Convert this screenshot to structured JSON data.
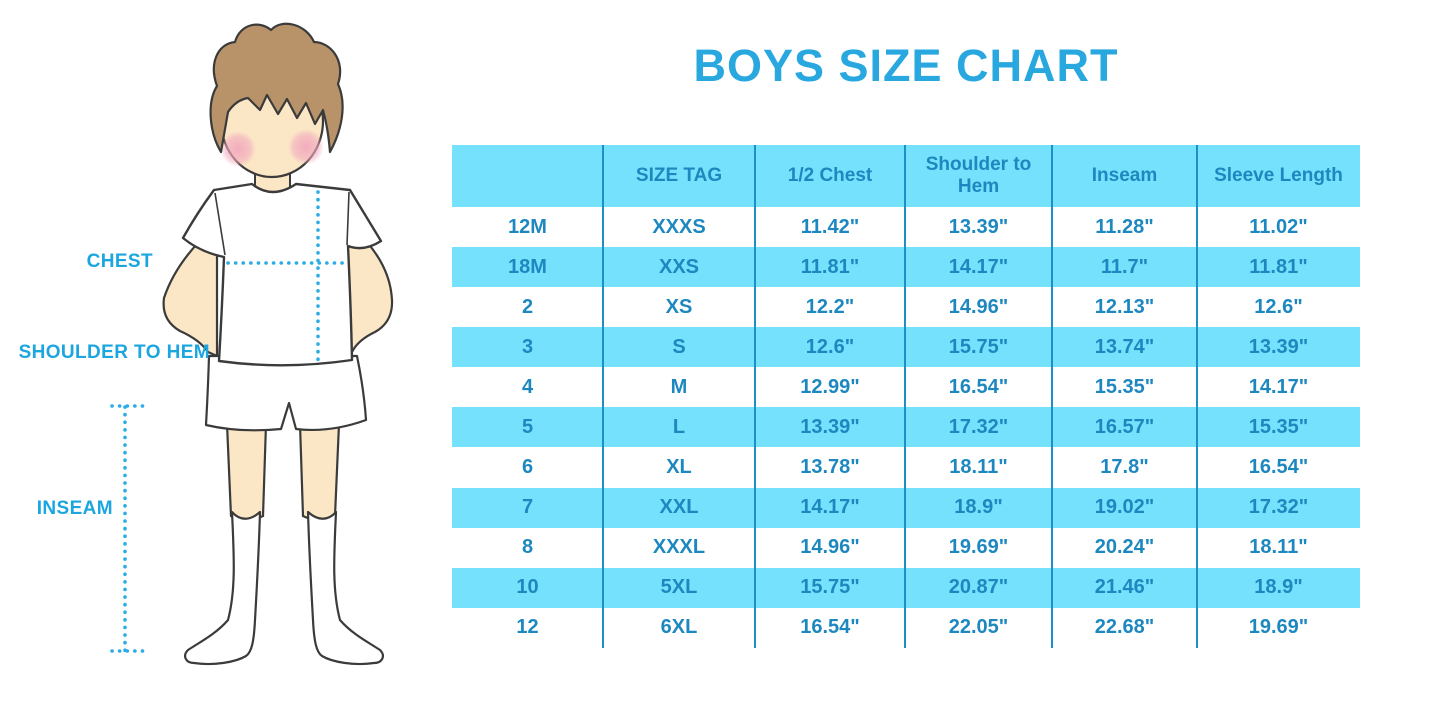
{
  "title": "BOYS SIZE CHART",
  "diagram": {
    "labels": {
      "chest": "CHEST",
      "shoulder_to_hem": "SHOULDER TO HEM",
      "inseam": "INSEAM"
    },
    "figure": "illustration of a boy in white t-shirt, shorts and knee socks with dotted measurement guides"
  },
  "colors": {
    "accent_blue": "#29A8E0",
    "cyan_fill": "#75E1FC",
    "divider_blue": "#1E8FC5",
    "table_text": "#1D88BF",
    "dotted_guide": "#2BACE5",
    "hair": "#B8936A",
    "skin": "#FBE7C6",
    "blush": "#F2A8BE"
  },
  "chart_data": {
    "type": "table",
    "title": "BOYS SIZE CHART",
    "columns": [
      "",
      "SIZE TAG",
      "1/2 Chest",
      "Shoulder to Hem",
      "Inseam",
      "Sleeve Length"
    ],
    "rows": [
      [
        "12M",
        "XXXS",
        "11.42\"",
        "13.39\"",
        "11.28\"",
        "11.02\""
      ],
      [
        "18M",
        "XXS",
        "11.81\"",
        "14.17\"",
        "11.7\"",
        "11.81\""
      ],
      [
        "2",
        "XS",
        "12.2\"",
        "14.96\"",
        "12.13\"",
        "12.6\""
      ],
      [
        "3",
        "S",
        "12.6\"",
        "15.75\"",
        "13.74\"",
        "13.39\""
      ],
      [
        "4",
        "M",
        "12.99\"",
        "16.54\"",
        "15.35\"",
        "14.17\""
      ],
      [
        "5",
        "L",
        "13.39\"",
        "17.32\"",
        "16.57\"",
        "15.35\""
      ],
      [
        "6",
        "XL",
        "13.78\"",
        "18.11\"",
        "17.8\"",
        "16.54\""
      ],
      [
        "7",
        "XXL",
        "14.17\"",
        "18.9\"",
        "19.02\"",
        "17.32\""
      ],
      [
        "8",
        "XXXL",
        "14.96\"",
        "19.69\"",
        "20.24\"",
        "18.11\""
      ],
      [
        "10",
        "5XL",
        "15.75\"",
        "20.87\"",
        "21.46\"",
        "18.9\""
      ],
      [
        "12",
        "6XL",
        "16.54\"",
        "22.05\"",
        "22.68\"",
        "19.69\""
      ]
    ],
    "row_striping": "header and odd data rows cyan, others white",
    "units": "inches"
  }
}
